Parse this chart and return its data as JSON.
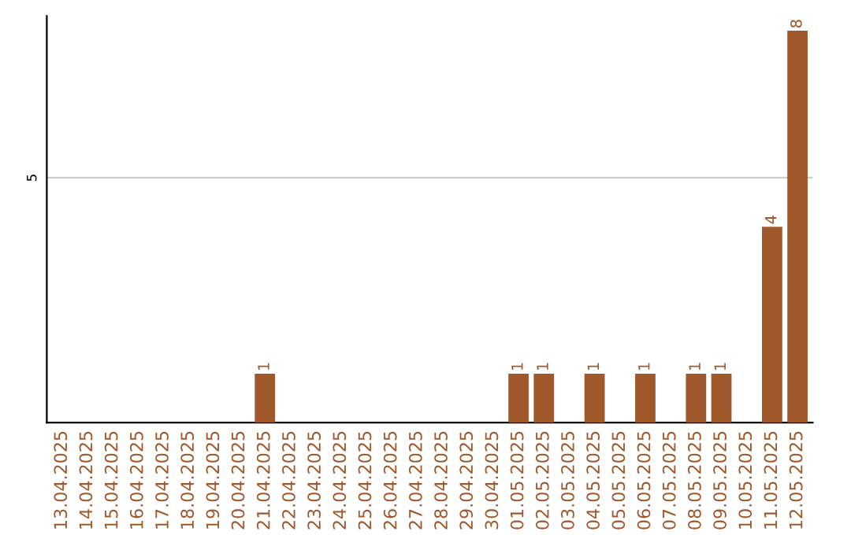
{
  "chart_data": {
    "type": "bar",
    "categories": [
      "13.04.2025",
      "14.04.2025",
      "15.04.2025",
      "16.04.2025",
      "17.04.2025",
      "18.04.2025",
      "19.04.2025",
      "20.04.2025",
      "21.04.2025",
      "22.04.2025",
      "23.04.2025",
      "24.04.2025",
      "25.04.2025",
      "26.04.2025",
      "27.04.2025",
      "28.04.2025",
      "29.04.2025",
      "30.04.2025",
      "01.05.2025",
      "02.05.2025",
      "03.05.2025",
      "04.05.2025",
      "05.05.2025",
      "06.05.2025",
      "07.05.2025",
      "08.05.2025",
      "09.05.2025",
      "10.05.2025",
      "11.05.2025",
      "12.05.2025"
    ],
    "values": [
      0,
      0,
      0,
      0,
      0,
      0,
      0,
      0,
      1,
      0,
      0,
      0,
      0,
      0,
      0,
      0,
      0,
      0,
      1,
      1,
      0,
      1,
      0,
      1,
      0,
      1,
      1,
      0,
      4,
      8
    ],
    "value_labels": [
      null,
      null,
      null,
      null,
      null,
      null,
      null,
      null,
      "1",
      null,
      null,
      null,
      null,
      null,
      null,
      null,
      null,
      null,
      "1",
      "1",
      null,
      "1",
      null,
      "1",
      null,
      "1",
      "1",
      null,
      "4",
      "8"
    ],
    "color": "#a0572a",
    "ylim": [
      0,
      8.3
    ],
    "yticks": [
      5
    ],
    "grid": "y"
  }
}
